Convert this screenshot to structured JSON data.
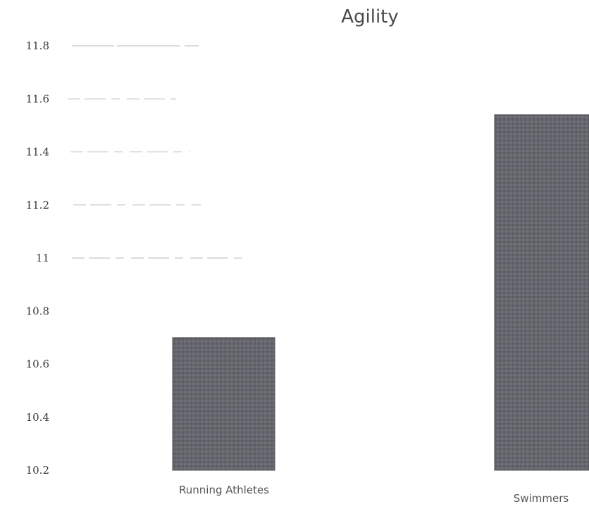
{
  "chart_data": {
    "type": "bar",
    "title": "Agility",
    "xlabel": "",
    "ylabel": "",
    "categories": [
      "Running Athletes",
      "Swimmers"
    ],
    "values": [
      10.7,
      11.54
    ],
    "ylim": [
      10.2,
      11.8
    ],
    "yticks": [
      "10.2",
      "10.4",
      "10.6",
      "10.8",
      "11",
      "11.2",
      "11.4",
      "11.6",
      "11.8"
    ],
    "grid": true,
    "legend": "none",
    "bar_color": "#5e5e66",
    "grid_color": "#b8b8b8"
  }
}
